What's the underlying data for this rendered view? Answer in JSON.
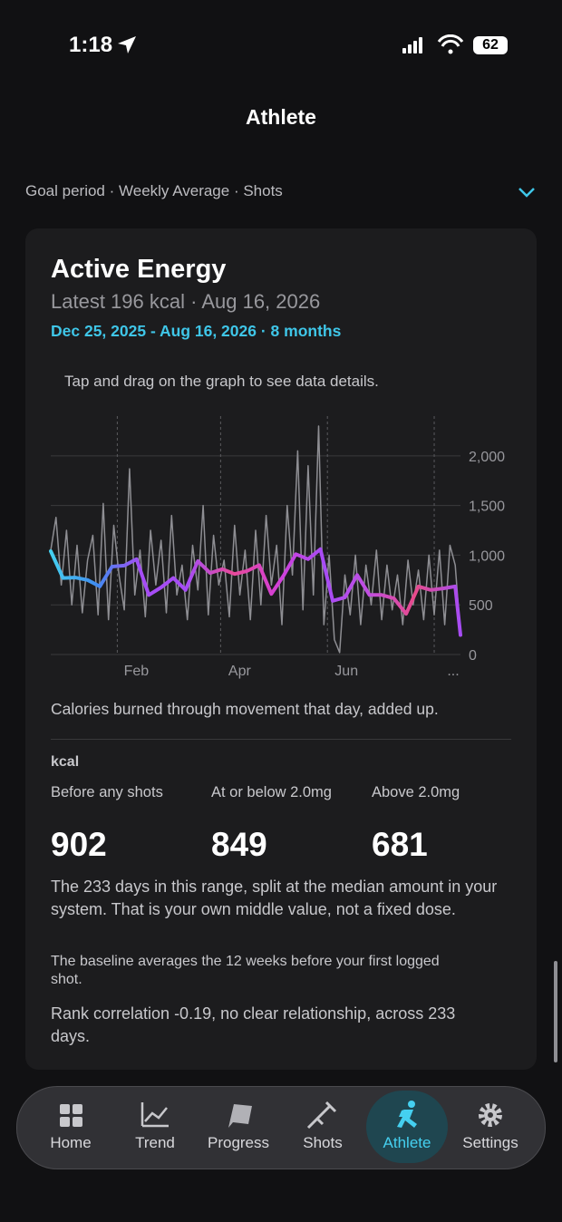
{
  "status_bar": {
    "time": "1:18",
    "battery": "62"
  },
  "header": {
    "title": "Athlete"
  },
  "filter": {
    "label": "Goal period · Weekly Average · Shots"
  },
  "card": {
    "title": "Active Energy",
    "latest": "Latest 196 kcal · Aug 16, 2026",
    "range": "Dec 25, 2025 - Aug 16, 2026 · 8 months",
    "hint": "Tap and drag on the graph to see data details.",
    "caption": "Calories burned through movement that day, added up.",
    "unit": "kcal",
    "groups": [
      {
        "label": "Before any shots",
        "value": 902
      },
      {
        "label": "At or below 2.0mg",
        "value": 849
      },
      {
        "label": "Above 2.0mg",
        "value": 681
      }
    ],
    "notes": [
      "The 233 days in this range, split at the median amount in your system. That is your own middle value, not a fixed dose.",
      "The baseline averages the 12 weeks before your first logged shot.",
      "Rank correlation -0.19, no clear relationship, across 233 days."
    ]
  },
  "chart_data": {
    "type": "line",
    "xlim": [
      0,
      234
    ],
    "ylim": [
      0,
      2400
    ],
    "xticks": [
      {
        "value": 38,
        "label": "Feb"
      },
      {
        "value": 97,
        "label": "Apr"
      },
      {
        "value": 158,
        "label": "Jun"
      },
      {
        "value": 219,
        "label": "..."
      }
    ],
    "yticks": [
      0,
      500,
      {
        "value": 1000,
        "label": "1,000"
      },
      {
        "value": 1500,
        "label": "1,500"
      },
      {
        "value": 2000,
        "label": "2,000"
      }
    ],
    "grid": true,
    "series": [
      {
        "color": "#8e8e93",
        "x": [
          0,
          3,
          6,
          9,
          12,
          15,
          18,
          21,
          24,
          27,
          30,
          33,
          36,
          39,
          42,
          45,
          48,
          51,
          54,
          57,
          60,
          63,
          66,
          69,
          72,
          75,
          78,
          81,
          84,
          87,
          90,
          93,
          96,
          99,
          102,
          105,
          108,
          111,
          114,
          117,
          120,
          123,
          126,
          129,
          132,
          135,
          138,
          141,
          144,
          147,
          150,
          153,
          156,
          159,
          162,
          165,
          168,
          171,
          174,
          177,
          180,
          183,
          186,
          189,
          192,
          195,
          198,
          201,
          204,
          207,
          210,
          213,
          216,
          219,
          222,
          225,
          228,
          231,
          234
        ],
        "values": [
          1050,
          1380,
          700,
          1250,
          500,
          1100,
          420,
          950,
          1200,
          400,
          1520,
          350,
          1300,
          800,
          450,
          1870,
          600,
          1050,
          380,
          1250,
          700,
          1150,
          420,
          1400,
          600,
          900,
          350,
          1100,
          650,
          1500,
          400,
          1200,
          700,
          950,
          380,
          1300,
          600,
          1050,
          350,
          1250,
          500,
          1400,
          700,
          1100,
          300,
          1500,
          800,
          2050,
          450,
          1900,
          600,
          2300,
          300,
          1000,
          150,
          20,
          800,
          400,
          1000,
          300,
          900,
          500,
          1050,
          350,
          900,
          450,
          800,
          300,
          950,
          500,
          850,
          350,
          1000,
          400,
          1050,
          300,
          1100,
          900,
          196
        ]
      },
      {
        "gradient": [
          "#45d0f0",
          "#3f8cf0",
          "#a64cf5",
          "#a64cf5",
          "#e84a9a",
          "#d23fd8",
          "#a64cf5",
          "#c24ee0",
          "#e84a8a",
          "#a64cf5"
        ],
        "x": [
          0,
          7,
          14,
          21,
          28,
          35,
          42,
          49,
          56,
          63,
          70,
          77,
          84,
          91,
          98,
          105,
          112,
          119,
          126,
          133,
          140,
          147,
          154,
          161,
          168,
          175,
          182,
          189,
          196,
          203,
          210,
          217,
          224,
          231,
          234
        ],
        "values": [
          1040,
          770,
          775,
          750,
          685,
          885,
          895,
          960,
          600,
          675,
          770,
          650,
          940,
          820,
          860,
          810,
          840,
          900,
          610,
          795,
          1010,
          960,
          1060,
          540,
          575,
          800,
          600,
          600,
          565,
          410,
          685,
          650,
          665,
          685,
          196
        ]
      }
    ]
  },
  "tab_bar": {
    "tabs": [
      "Home",
      "Trend",
      "Progress",
      "Shots",
      "Athlete",
      "Settings"
    ]
  }
}
